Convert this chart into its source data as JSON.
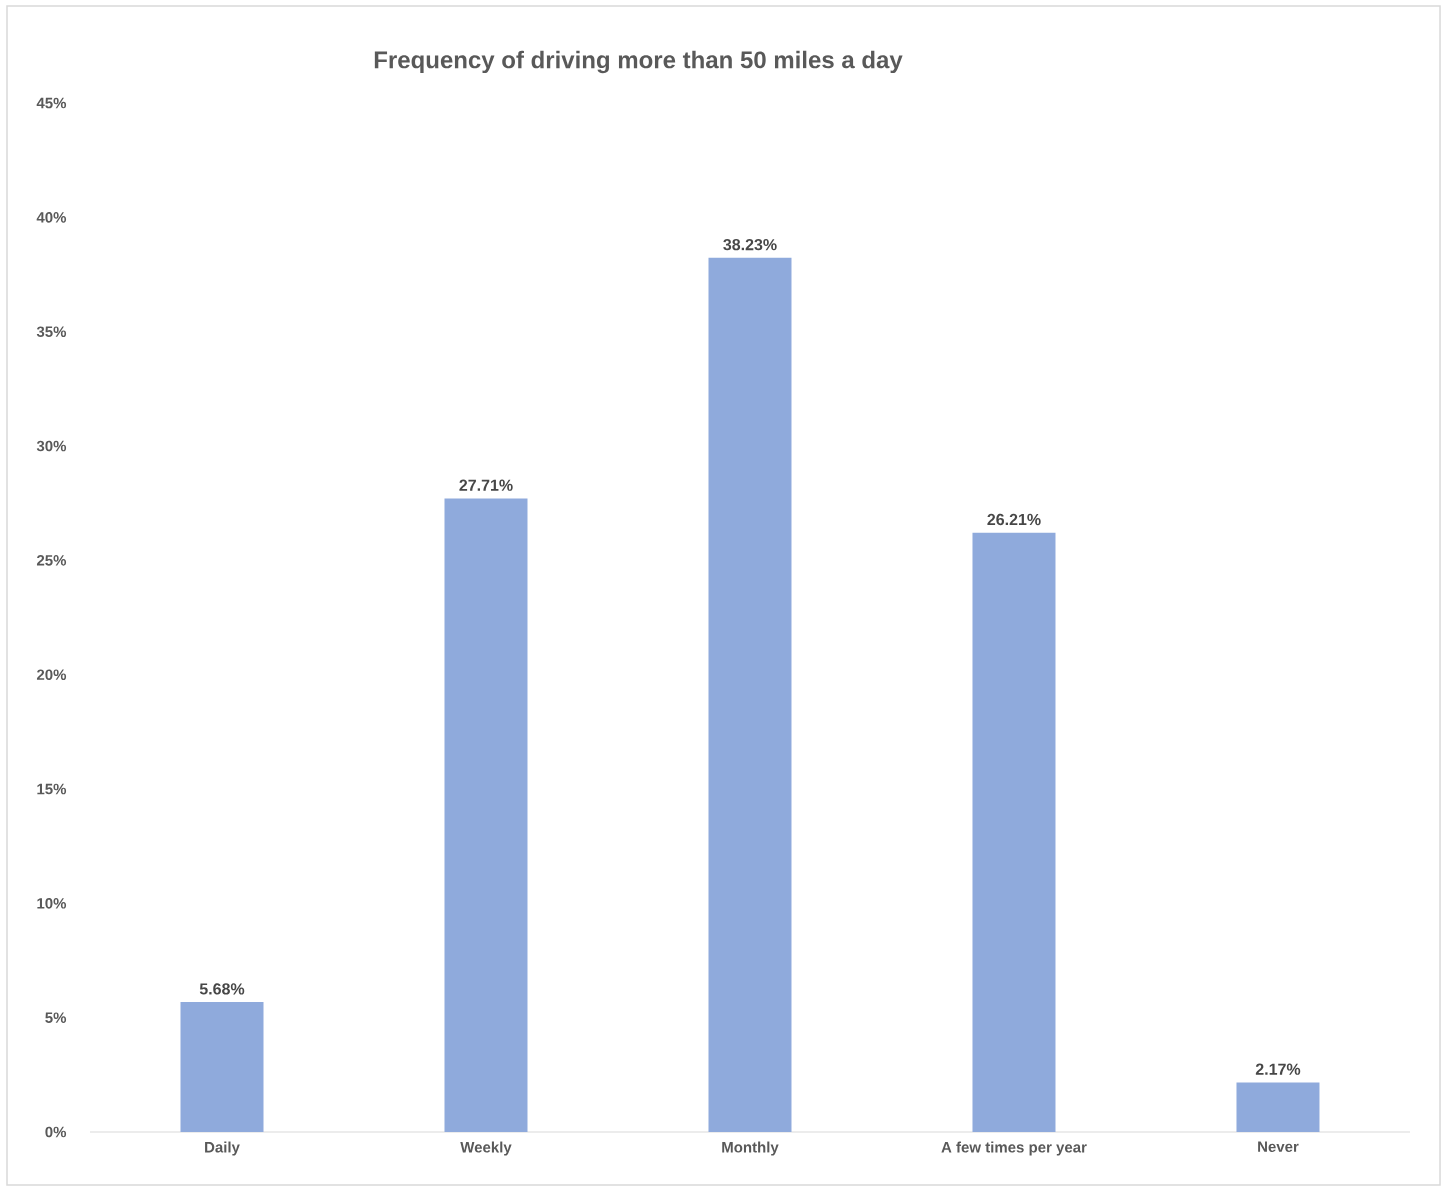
{
  "chart_data": {
    "type": "bar",
    "title": "Frequency of driving more than 50 miles a day",
    "categories": [
      "Daily",
      "Weekly",
      "Monthly",
      "A few times per year",
      "Never"
    ],
    "values": [
      5.68,
      27.71,
      38.23,
      26.21,
      2.17
    ],
    "value_labels": [
      "5.68%",
      "27.71%",
      "38.23%",
      "26.21%",
      "2.17%"
    ],
    "color": "#8faadc",
    "ylim": [
      0,
      45
    ],
    "yticks": [
      {
        "value": 0,
        "label": "0%"
      },
      {
        "value": 5,
        "label": "5%"
      },
      {
        "value": 10,
        "label": "10%"
      },
      {
        "value": 15,
        "label": "15%"
      },
      {
        "value": 20,
        "label": "20%"
      },
      {
        "value": 25,
        "label": "25%"
      },
      {
        "value": 30,
        "label": "30%"
      },
      {
        "value": 35,
        "label": "35%"
      },
      {
        "value": 40,
        "label": "40%"
      },
      {
        "value": 45,
        "label": "45%"
      }
    ]
  }
}
